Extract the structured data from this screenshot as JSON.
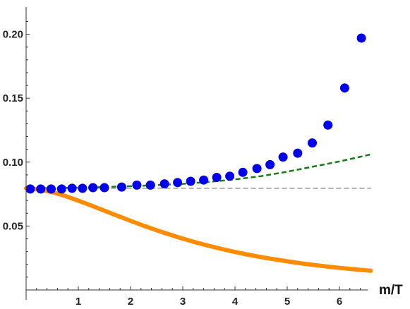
{
  "chart_data": {
    "type": "scatter",
    "title": "",
    "xlabel": "m/T",
    "ylabel": "",
    "xlim": [
      0,
      6.6
    ],
    "ylim": [
      0,
      0.22
    ],
    "x_ticks": [
      1,
      2,
      3,
      4,
      5,
      6
    ],
    "x_tick_labels": [
      "1",
      "2",
      "3",
      "4",
      "5",
      "6"
    ],
    "y_ticks": [
      0.05,
      0.1,
      0.15,
      0.2
    ],
    "y_tick_labels": [
      "0.05",
      "0.10",
      "0.15",
      "0.20"
    ],
    "grid": false,
    "legend": "none",
    "series": [
      {
        "type": "scatter",
        "color": "#0000ee",
        "x": [
          0.08,
          0.28,
          0.48,
          0.68,
          0.88,
          1.08,
          1.28,
          1.5,
          1.83,
          2.12,
          2.38,
          2.65,
          2.9,
          3.15,
          3.4,
          3.65,
          3.9,
          4.15,
          4.42,
          4.67,
          4.92,
          5.2,
          5.48,
          5.78,
          6.1,
          6.42
        ],
        "y": [
          0.079,
          0.079,
          0.079,
          0.079,
          0.0795,
          0.0795,
          0.08,
          0.08,
          0.0805,
          0.082,
          0.082,
          0.083,
          0.084,
          0.085,
          0.086,
          0.088,
          0.089,
          0.092,
          0.095,
          0.098,
          0.104,
          0.107,
          0.115,
          0.129,
          0.158,
          0.197
        ]
      },
      {
        "type": "line",
        "style": "dashed",
        "color": "#1a7a1a",
        "x": [
          0,
          0.5,
          1,
          1.5,
          2,
          2.5,
          3,
          3.5,
          4,
          4.5,
          5,
          5.5,
          6,
          6.6
        ],
        "y": [
          0.0795,
          0.0797,
          0.08,
          0.0805,
          0.0812,
          0.082,
          0.083,
          0.0845,
          0.0865,
          0.089,
          0.0925,
          0.0965,
          0.1005,
          0.106
        ]
      },
      {
        "type": "line",
        "style": "dashed",
        "color": "#9a9a9a",
        "x": [
          0,
          6.6
        ],
        "y": [
          0.0795,
          0.0795
        ]
      },
      {
        "type": "line",
        "style": "solid",
        "color": "#ff8c00",
        "x": [
          0,
          0.25,
          0.5,
          0.75,
          1,
          1.25,
          1.5,
          1.75,
          2,
          2.25,
          2.5,
          2.75,
          3,
          3.25,
          3.5,
          3.75,
          4,
          4.25,
          4.5,
          4.75,
          5,
          5.25,
          5.5,
          5.75,
          6,
          6.25,
          6.6
        ],
        "y": [
          0.0795,
          0.0786,
          0.0765,
          0.0735,
          0.0698,
          0.066,
          0.062,
          0.058,
          0.0541,
          0.0503,
          0.0467,
          0.0433,
          0.0401,
          0.0372,
          0.0345,
          0.032,
          0.0297,
          0.0276,
          0.0257,
          0.024,
          0.0224,
          0.0209,
          0.0196,
          0.0184,
          0.0173,
          0.0163,
          0.015
        ]
      }
    ]
  }
}
